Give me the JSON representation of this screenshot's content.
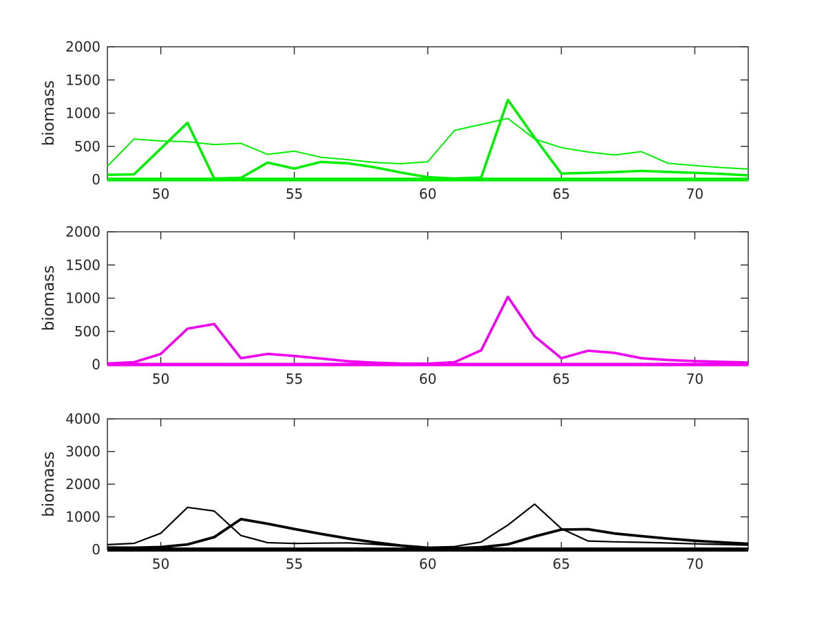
{
  "figure": {
    "background": "#ffffff",
    "axis_color": "#262626",
    "label_color": "#262626"
  },
  "chart_data": [
    {
      "type": "line",
      "panel": "top",
      "title": "",
      "xlabel": "",
      "ylabel": "biomass",
      "xlim": [
        48,
        72
      ],
      "ylim": [
        0,
        2000
      ],
      "xticks": [
        50,
        55,
        60,
        65,
        70
      ],
      "yticks": [
        0,
        500,
        1000,
        1500,
        2000
      ],
      "grid": false,
      "legend": null,
      "color": "#00ee00",
      "x": [
        48,
        49,
        50,
        51,
        52,
        53,
        54,
        55,
        56,
        57,
        58,
        59,
        60,
        61,
        62,
        63,
        64,
        65,
        66,
        67,
        68,
        69,
        70,
        71,
        72
      ],
      "series": [
        {
          "name": "green-thin",
          "linewidth": 2,
          "values": [
            200,
            610,
            580,
            570,
            525,
            545,
            378,
            428,
            335,
            300,
            258,
            238,
            268,
            740,
            830,
            920,
            610,
            480,
            415,
            370,
            420,
            245,
            210,
            180,
            158
          ]
        },
        {
          "name": "green-thick",
          "linewidth": 3.6,
          "values": [
            70,
            78,
            465,
            855,
            15,
            25,
            255,
            165,
            265,
            245,
            185,
            105,
            35,
            15,
            30,
            1200,
            630,
            90,
            100,
            112,
            130,
            115,
            100,
            85,
            62
          ]
        },
        {
          "name": "green-flat-zero",
          "linewidth": 5.5,
          "values": [
            0,
            0,
            0,
            0,
            0,
            0,
            0,
            0,
            0,
            0,
            0,
            0,
            0,
            0,
            0,
            0,
            0,
            0,
            0,
            0,
            0,
            0,
            0,
            0,
            0
          ]
        }
      ]
    },
    {
      "type": "line",
      "panel": "middle",
      "title": "",
      "xlabel": "",
      "ylabel": "biomass",
      "xlim": [
        48,
        72
      ],
      "ylim": [
        0,
        2000
      ],
      "xticks": [
        50,
        55,
        60,
        65,
        70
      ],
      "yticks": [
        0,
        500,
        1000,
        1500,
        2000
      ],
      "grid": false,
      "legend": null,
      "color": "#ee00ee",
      "x": [
        48,
        49,
        50,
        51,
        52,
        53,
        54,
        55,
        56,
        57,
        58,
        59,
        60,
        61,
        62,
        63,
        64,
        65,
        66,
        67,
        68,
        69,
        70,
        71,
        72
      ],
      "series": [
        {
          "name": "magenta-main",
          "linewidth": 3.6,
          "values": [
            15,
            35,
            160,
            540,
            610,
            95,
            160,
            128,
            90,
            50,
            28,
            15,
            12,
            35,
            215,
            1020,
            425,
            95,
            207,
            175,
            95,
            68,
            52,
            40,
            30
          ]
        },
        {
          "name": "magenta-flat-zero",
          "linewidth": 5,
          "values": [
            0,
            0,
            0,
            0,
            0,
            0,
            0,
            0,
            0,
            0,
            0,
            0,
            0,
            0,
            0,
            0,
            0,
            0,
            0,
            0,
            0,
            0,
            0,
            0,
            0
          ]
        }
      ]
    },
    {
      "type": "line",
      "panel": "bottom",
      "title": "",
      "xlabel": "",
      "ylabel": "biomass",
      "xlim": [
        48,
        72
      ],
      "ylim": [
        0,
        4000
      ],
      "xticks": [
        50,
        55,
        60,
        65,
        70
      ],
      "yticks": [
        0,
        1000,
        2000,
        3000,
        4000
      ],
      "grid": false,
      "legend": null,
      "color": "#000000",
      "x": [
        48,
        49,
        50,
        51,
        52,
        53,
        54,
        55,
        56,
        57,
        58,
        59,
        60,
        61,
        62,
        63,
        64,
        65,
        66,
        67,
        68,
        69,
        70,
        71,
        72
      ],
      "series": [
        {
          "name": "black-thin",
          "linewidth": 2.2,
          "values": [
            150,
            190,
            500,
            1290,
            1180,
            430,
            210,
            185,
            195,
            205,
            160,
            105,
            70,
            90,
            230,
            750,
            1390,
            640,
            260,
            235,
            220,
            200,
            175,
            155,
            135
          ]
        },
        {
          "name": "black-thick",
          "linewidth": 3.8,
          "values": [
            60,
            55,
            75,
            155,
            380,
            930,
            790,
            630,
            480,
            340,
            220,
            120,
            55,
            40,
            70,
            160,
            400,
            610,
            620,
            490,
            410,
            335,
            270,
            220,
            175
          ]
        },
        {
          "name": "black-flat-zero",
          "linewidth": 6,
          "values": [
            0,
            0,
            0,
            0,
            0,
            0,
            0,
            0,
            0,
            0,
            0,
            0,
            0,
            0,
            0,
            0,
            0,
            0,
            0,
            0,
            0,
            0,
            0,
            0,
            0
          ]
        }
      ]
    }
  ]
}
